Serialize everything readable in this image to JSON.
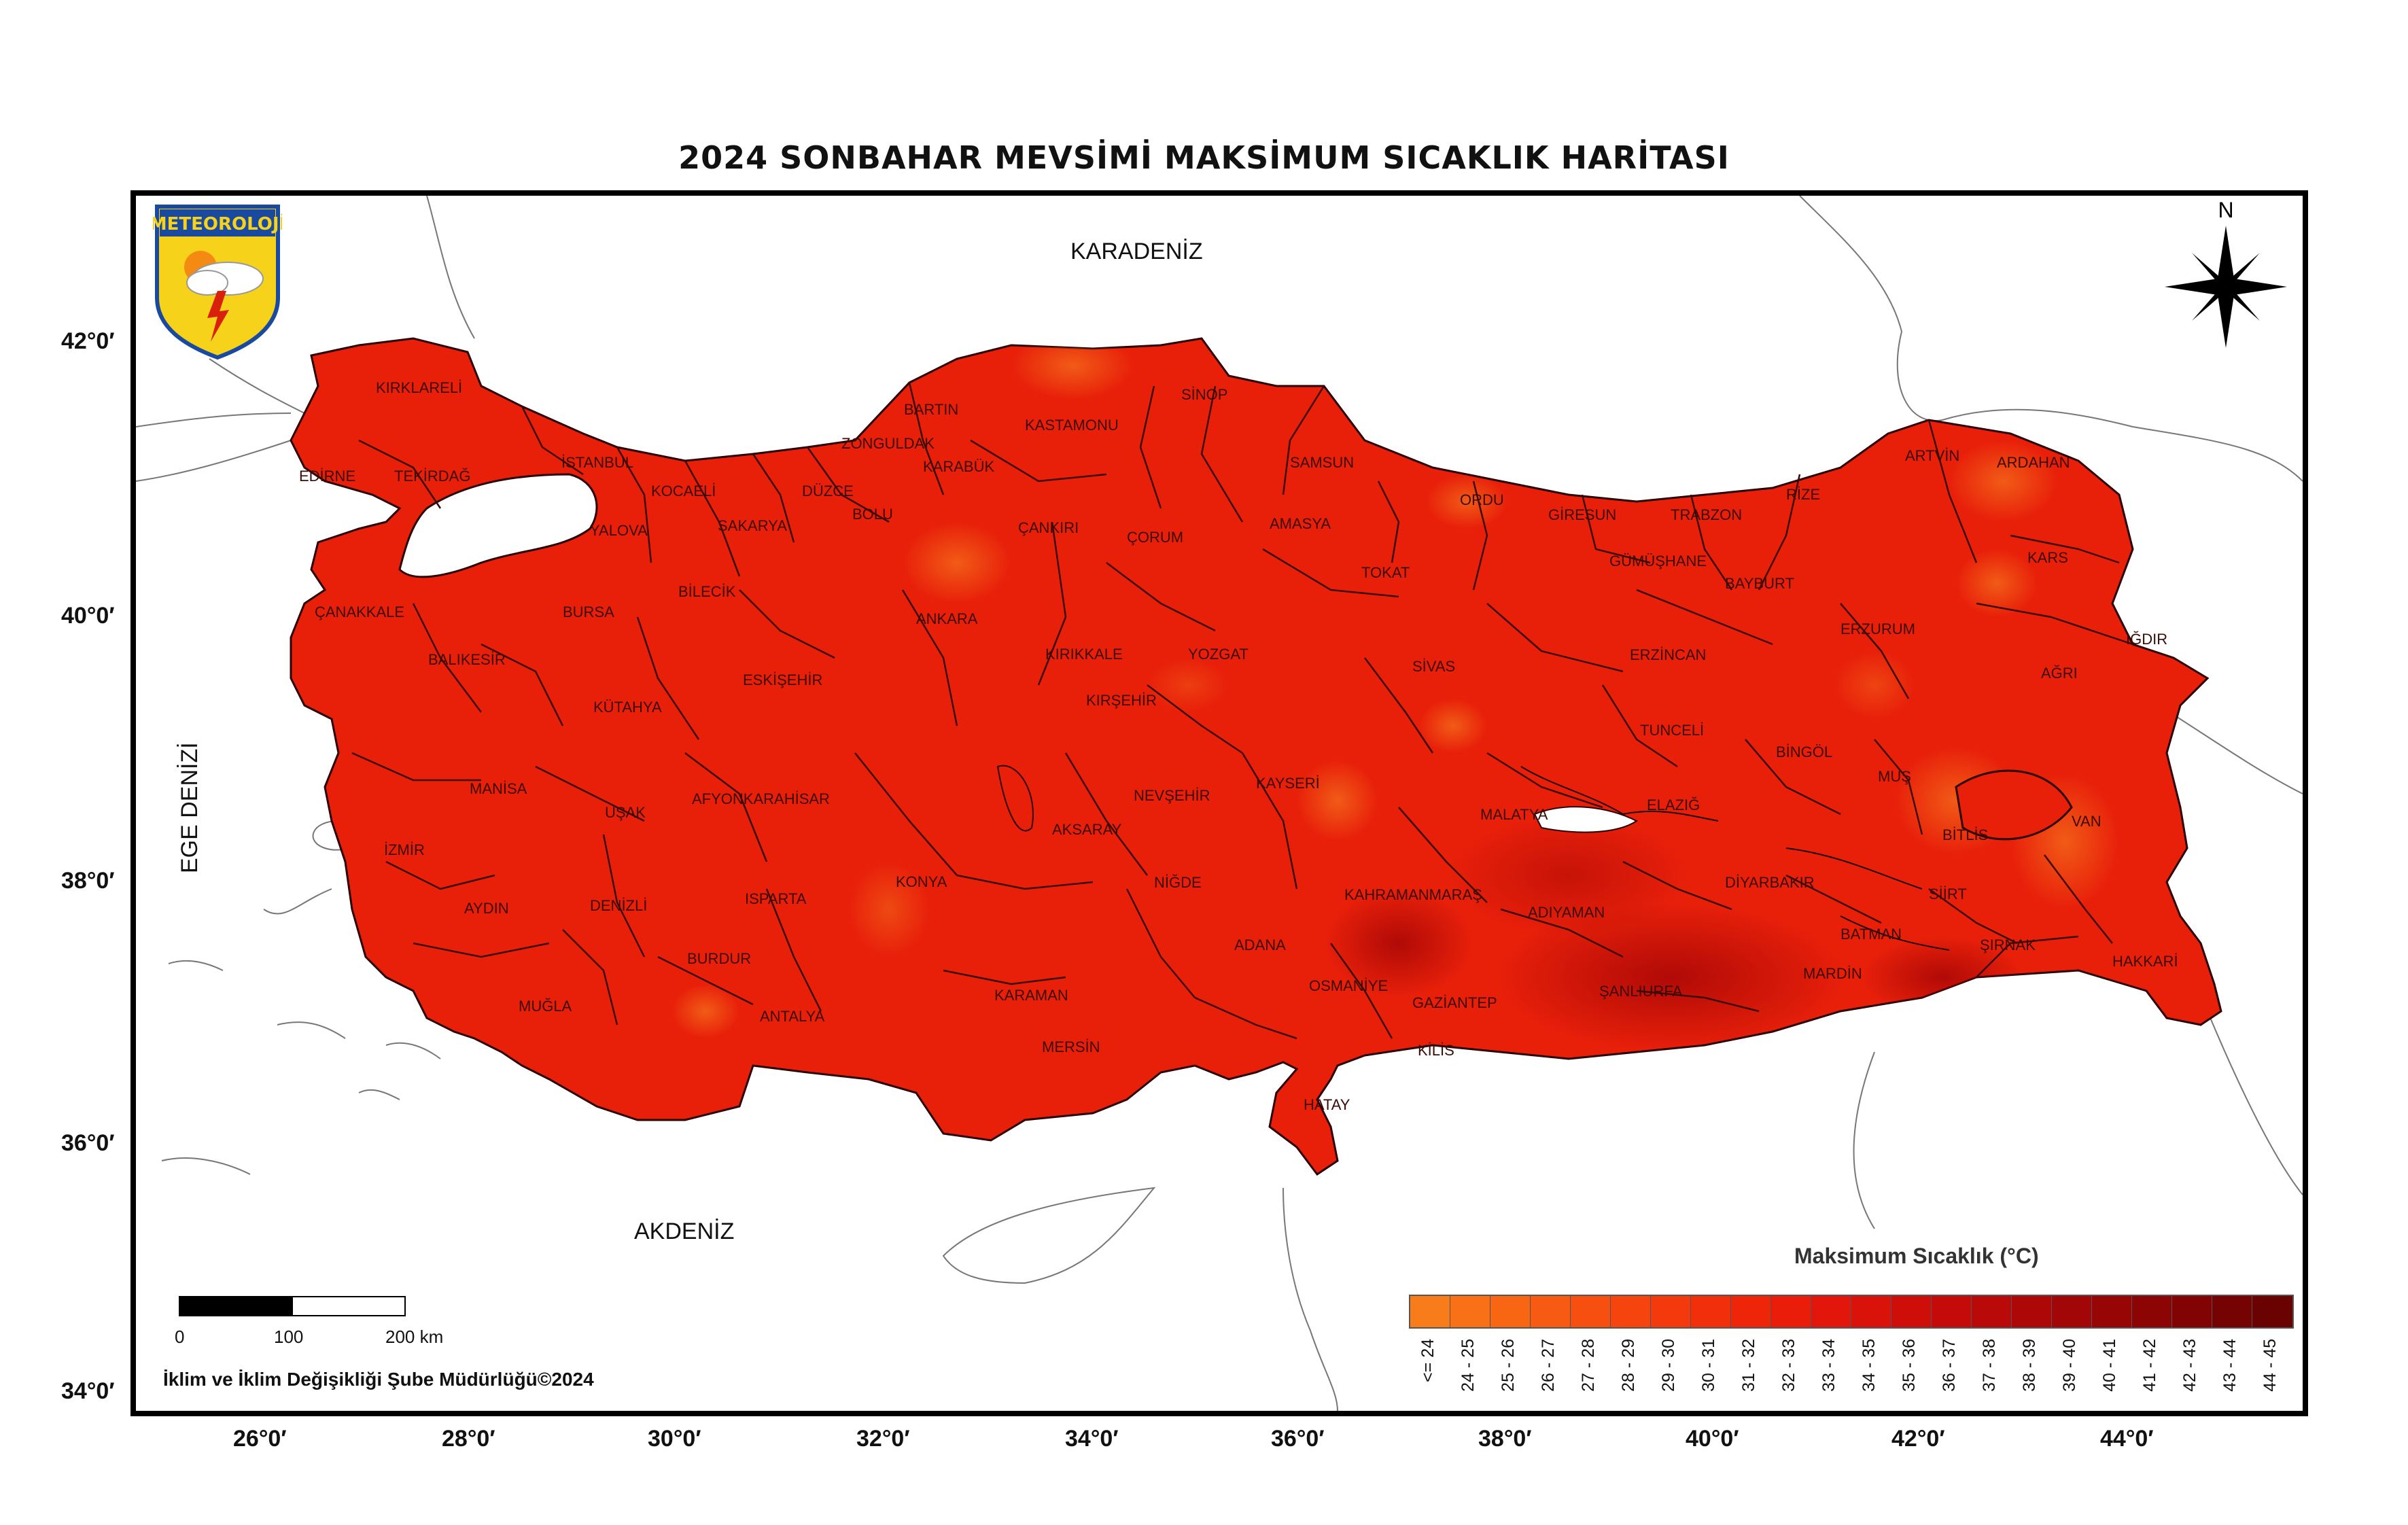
{
  "title": "2024 SONBAHAR MEVSİMİ MAKSİMUM SICAKLIK HARİTASI",
  "logo_text": "METEOROLOJİ",
  "north_label": "N",
  "seas": {
    "karadeniz": "KARADENİZ",
    "akdeniz": "AKDENİZ",
    "ege": "EGE DENİZİ"
  },
  "latitudes": [
    "42°0′",
    "40°0′",
    "38°0′",
    "36°0′",
    "34°0′"
  ],
  "longitudes": [
    "26°0′",
    "28°0′",
    "30°0′",
    "32°0′",
    "34°0′",
    "36°0′",
    "38°0′",
    "40°0′",
    "42°0′",
    "44°0′"
  ],
  "scale": {
    "l0": "0",
    "l1": "100",
    "l2": "200 km"
  },
  "credit": "İklim ve İklim Değişikliği Şube Müdürlüğü©2024",
  "legend": {
    "title": "Maksimum Sıcaklık (°C)",
    "classes": [
      {
        "label": "<= 24",
        "color": "#f97c1a"
      },
      {
        "label": "24 - 25",
        "color": "#f97117"
      },
      {
        "label": "25 - 26",
        "color": "#f86614"
      },
      {
        "label": "26 - 27",
        "color": "#f75a12"
      },
      {
        "label": "27 - 28",
        "color": "#f64f10"
      },
      {
        "label": "28 - 29",
        "color": "#f5440e"
      },
      {
        "label": "29 - 30",
        "color": "#f4390c"
      },
      {
        "label": "30 - 31",
        "color": "#f22f0b"
      },
      {
        "label": "31 - 32",
        "color": "#ef250a"
      },
      {
        "label": "32 - 33",
        "color": "#ea1d0a"
      },
      {
        "label": "33 - 34",
        "color": "#e2160a"
      },
      {
        "label": "34 - 35",
        "color": "#d9120a"
      },
      {
        "label": "35 - 36",
        "color": "#cf0e09"
      },
      {
        "label": "36 - 37",
        "color": "#c40b09"
      },
      {
        "label": "37 - 38",
        "color": "#b90908"
      },
      {
        "label": "38 - 39",
        "color": "#ae0707"
      },
      {
        "label": "39 - 40",
        "color": "#a20606"
      },
      {
        "label": "40 - 41",
        "color": "#970505"
      },
      {
        "label": "41 - 42",
        "color": "#8c0404"
      },
      {
        "label": "42 - 43",
        "color": "#810303"
      },
      {
        "label": "43 - 44",
        "color": "#760303"
      },
      {
        "label": "44 - 45",
        "color": "#6b0202"
      }
    ]
  },
  "provinces": [
    "KIRKLARELİ",
    "EDİRNE",
    "TEKİRDAĞ",
    "İSTANBUL",
    "KOCAELİ",
    "YALOVA",
    "SAKARYA",
    "DÜZCE",
    "BOLU",
    "ZONGULDAK",
    "BARTIN",
    "KARABÜK",
    "KASTAMONU",
    "SİNOP",
    "SAMSUN",
    "AMASYA",
    "ÇORUM",
    "ÇANKIRI",
    "ORDU",
    "GİRESUN",
    "TRABZON",
    "RİZE",
    "ARTVİN",
    "ARDAHAN",
    "KARS",
    "IĞDIR",
    "AĞRI",
    "ERZURUM",
    "BAYBURT",
    "GÜMÜŞHANE",
    "TOKAT",
    "SİVAS",
    "ERZİNCAN",
    "TUNCELİ",
    "BİNGÖL",
    "MUŞ",
    "VAN",
    "BİTLİS",
    "ÇANAKKALE",
    "BALIKESİR",
    "BURSA",
    "BİLECİK",
    "ESKİŞEHİR",
    "KÜTAHYA",
    "MANİSA",
    "UŞAK",
    "İZMİR",
    "AFYONKARAHİSAR",
    "AYDIN",
    "DENİZLİ",
    "ISPARTA",
    "BURDUR",
    "MUĞLA",
    "ANTALYA",
    "ANKARA",
    "KIRIKKALE",
    "KIRŞEHİR",
    "YOZGAT",
    "KONYA",
    "AKSARAY",
    "NEVŞEHİR",
    "KAYSERİ",
    "NİĞDE",
    "KARAMAN",
    "MERSİN",
    "ADANA",
    "OSMANİYE",
    "HATAY",
    "KİLİS",
    "GAZİANTEP",
    "KAHRAMANMARAŞ",
    "MALATYA",
    "ELAZIĞ",
    "ADIYAMAN",
    "ŞANLIURFA",
    "DİYARBAKIR",
    "MARDİN",
    "BATMAN",
    "SİİRT",
    "ŞIRNAK",
    "HAKKARİ"
  ]
}
